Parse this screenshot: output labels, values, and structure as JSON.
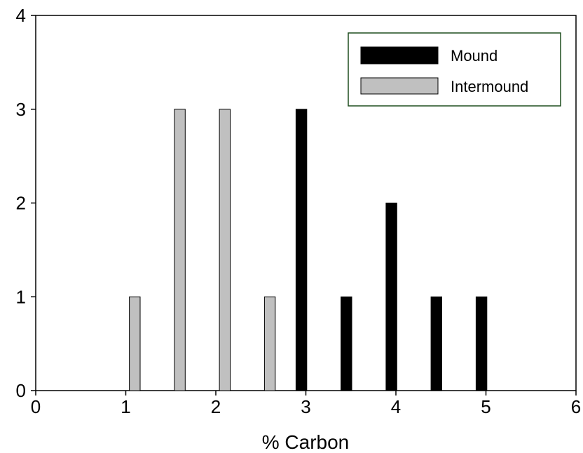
{
  "chart_data": {
    "type": "bar",
    "xlabel": "% Carbon",
    "ylabel": "",
    "xlim": [
      0,
      6
    ],
    "ylim": [
      0,
      4
    ],
    "xticks": [
      "0",
      "1",
      "2",
      "3",
      "4",
      "5",
      "6"
    ],
    "yticks": [
      "0",
      "1",
      "2",
      "3",
      "4"
    ],
    "grid": false,
    "legend_position": "top-right",
    "series": [
      {
        "name": "Mound",
        "color": "#000000",
        "points": [
          {
            "x": 2.95,
            "y": 3
          },
          {
            "x": 3.45,
            "y": 1
          },
          {
            "x": 3.95,
            "y": 2
          },
          {
            "x": 4.45,
            "y": 1
          },
          {
            "x": 4.95,
            "y": 1
          }
        ]
      },
      {
        "name": "Intermound",
        "color": "#c0c0c0",
        "points": [
          {
            "x": 1.1,
            "y": 1
          },
          {
            "x": 1.6,
            "y": 3
          },
          {
            "x": 2.1,
            "y": 3
          },
          {
            "x": 2.6,
            "y": 1
          }
        ]
      }
    ]
  }
}
